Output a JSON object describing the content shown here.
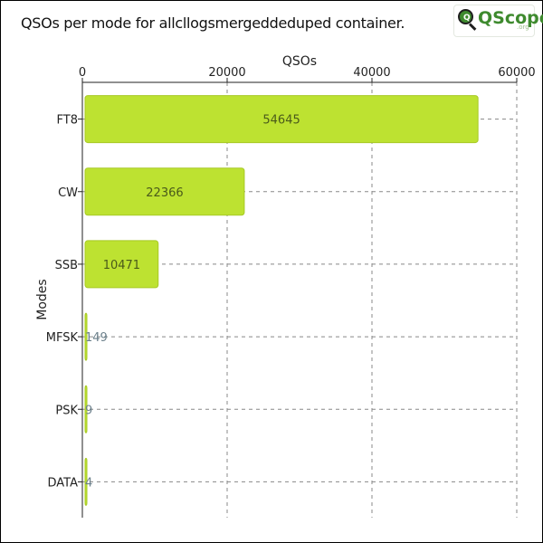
{
  "title": "QSOs per mode for allcllogsmergeddeduped container.",
  "logo": {
    "brand": "QScope",
    "domain": ".org",
    "lens_letter": "Q"
  },
  "colors": {
    "bar": "#bde231",
    "bar_edge": "#a7c925",
    "inside_label": "#4a5a1a",
    "outside_label": "#6a7f8a",
    "grid": "#888888",
    "axis": "#222222"
  },
  "chart_data": {
    "type": "bar",
    "orientation": "horizontal",
    "title": "QSOs per mode for allcllogsmergeddeduped container.",
    "xlabel": "QSOs",
    "ylabel": "Modes",
    "categories": [
      "FT8",
      "CW",
      "SSB",
      "MFSK",
      "PSK",
      "DATA"
    ],
    "values": [
      54645,
      22366,
      10471,
      149,
      9,
      4
    ],
    "xlim": [
      0,
      60000
    ],
    "x_ticks": [
      0,
      20000,
      40000,
      60000
    ],
    "x_axis_position": "top",
    "grid": true,
    "grid_style": "dashed"
  }
}
